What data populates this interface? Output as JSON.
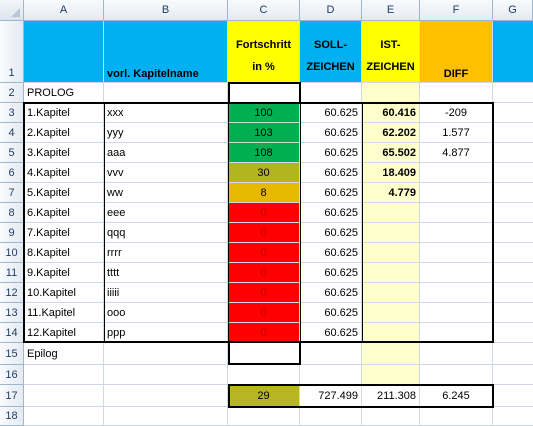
{
  "columns": [
    "A",
    "B",
    "C",
    "D",
    "E",
    "F",
    "G"
  ],
  "row_numbers": [
    "1",
    "2",
    "3",
    "4",
    "5",
    "6",
    "7",
    "8",
    "9",
    "10",
    "11",
    "12",
    "13",
    "14",
    "15",
    "16",
    "17",
    "18"
  ],
  "headers": {
    "kapitelname": "vorl. Kapitelname",
    "fortschritt": "Fortschritt in %",
    "soll": "SOLL-ZEICHEN",
    "ist": "IST-ZEICHEN",
    "diff": "DIFF"
  },
  "prolog": "PROLOG",
  "epilog": "Epilog",
  "chapters": [
    {
      "kapitel": "1.Kapitel",
      "name": "xxx",
      "fortschritt": "100",
      "soll": "60.625",
      "ist": "60.416",
      "diff": "-209"
    },
    {
      "kapitel": "2.Kapitel",
      "name": "yyy",
      "fortschritt": "103",
      "soll": "60.625",
      "ist": "62.202",
      "diff": "1.577"
    },
    {
      "kapitel": "3.Kapitel",
      "name": "aaa",
      "fortschritt": "108",
      "soll": "60.625",
      "ist": "65.502",
      "diff": "4.877"
    },
    {
      "kapitel": "4.Kapitel",
      "name": "vvv",
      "fortschritt": "30",
      "soll": "60.625",
      "ist": "18.409",
      "diff": ""
    },
    {
      "kapitel": "5.Kapitel",
      "name": "ww",
      "fortschritt": "8",
      "soll": "60.625",
      "ist": "4.779",
      "diff": ""
    },
    {
      "kapitel": "6.Kapitel",
      "name": "eee",
      "fortschritt": "0",
      "soll": "60.625",
      "ist": "",
      "diff": ""
    },
    {
      "kapitel": "7.Kapitel",
      "name": "qqq",
      "fortschritt": "0",
      "soll": "60.625",
      "ist": "",
      "diff": ""
    },
    {
      "kapitel": "8.Kapitel",
      "name": "rrrr",
      "fortschritt": "0",
      "soll": "60.625",
      "ist": "",
      "diff": ""
    },
    {
      "kapitel": "9.Kapitel",
      "name": "tttt",
      "fortschritt": "0",
      "soll": "60.625",
      "ist": "",
      "diff": ""
    },
    {
      "kapitel": "10.Kapitel",
      "name": "iiiii",
      "fortschritt": "0",
      "soll": "60.625",
      "ist": "",
      "diff": ""
    },
    {
      "kapitel": "11.Kapitel",
      "name": "ooo",
      "fortschritt": "0",
      "soll": "60.625",
      "ist": "",
      "diff": ""
    },
    {
      "kapitel": "12.Kapitel",
      "name": "ppp",
      "fortschritt": "0",
      "soll": "60.625",
      "ist": "",
      "diff": ""
    }
  ],
  "totals": {
    "fortschritt": "29",
    "soll": "727.499",
    "ist": "211.308",
    "diff": "6.245"
  },
  "colors": {
    "header_cyan": "#00b0f0",
    "header_yellow": "#ffff00",
    "header_orange": "#ffc000",
    "ist_column": "#ffffcc",
    "progress_green": "#00b050",
    "progress_olive": "#b4b41e",
    "progress_amber": "#e6b900",
    "progress_red": "#ff0000"
  }
}
